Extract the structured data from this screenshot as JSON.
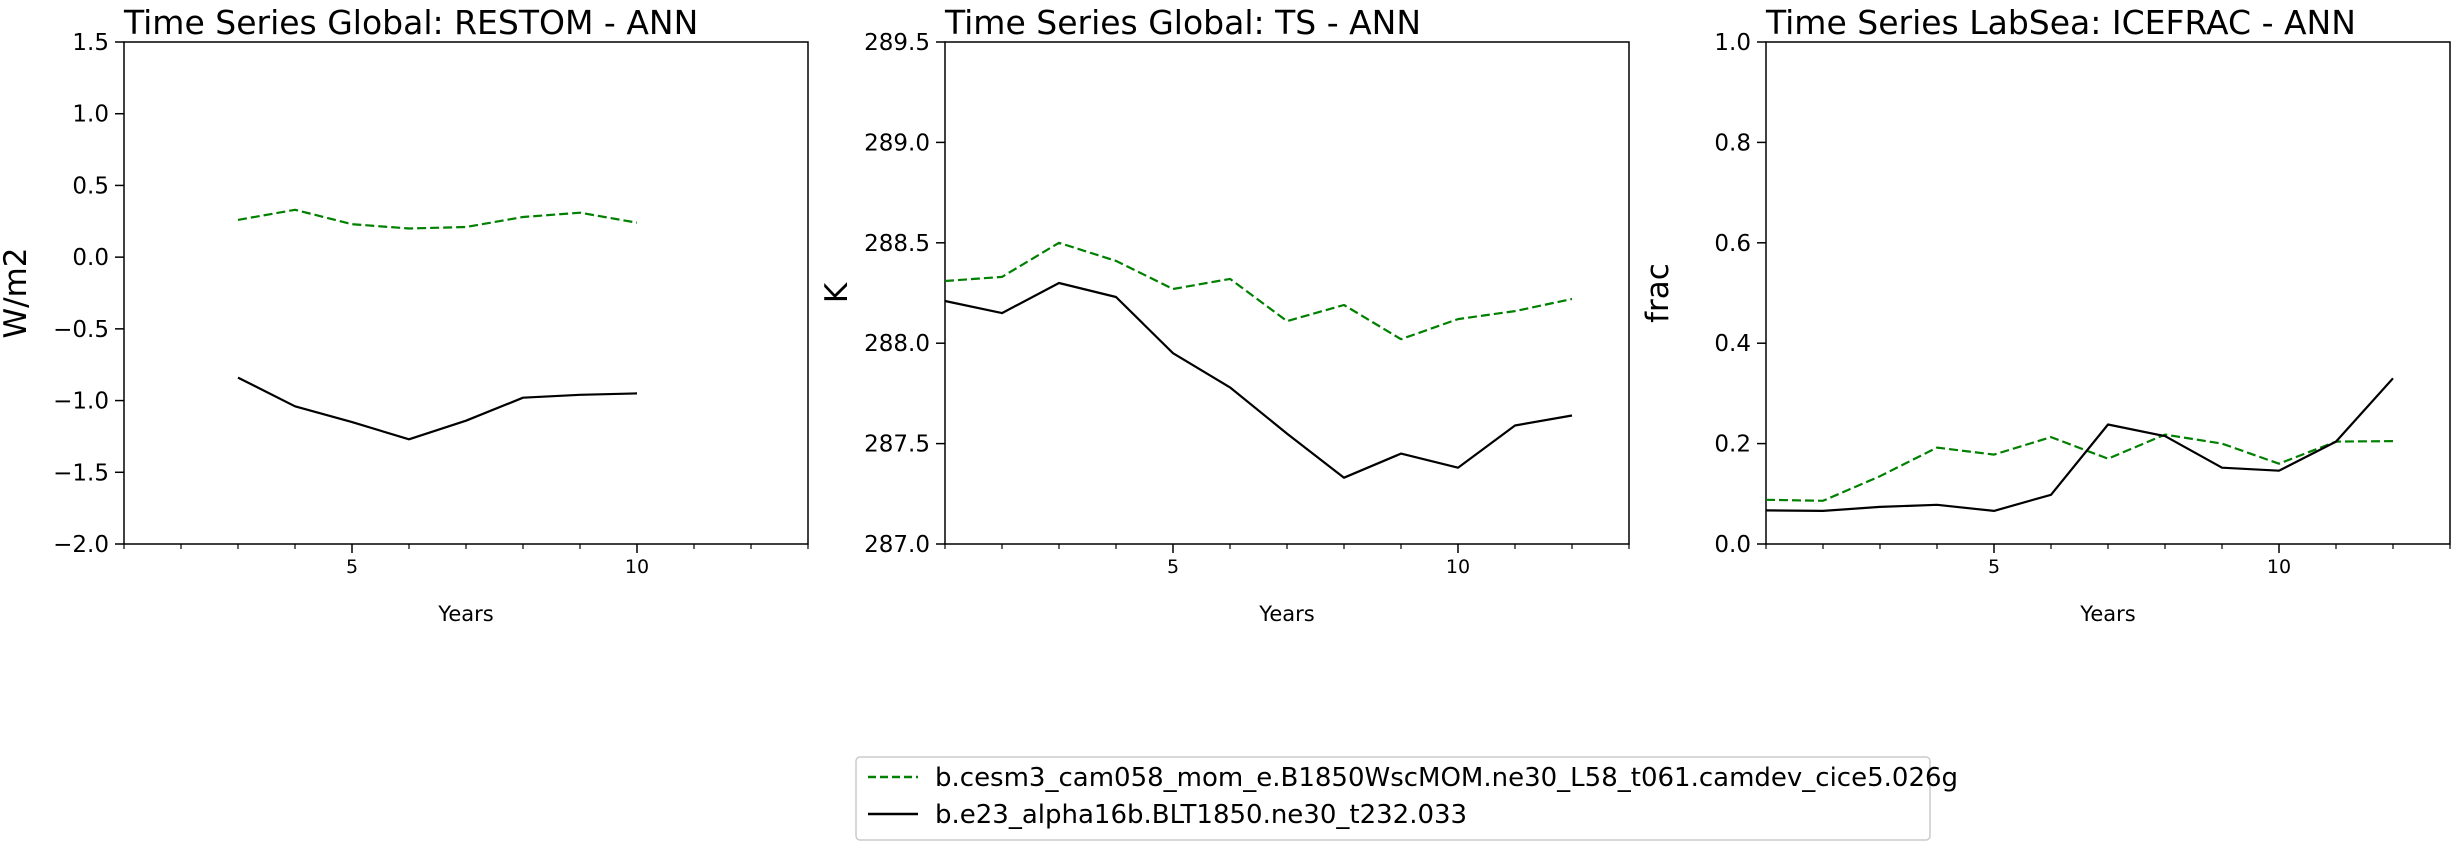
{
  "legend": {
    "placement": "bottom-center",
    "entries": [
      {
        "label": "b.cesm3_cam058_mom_e.B1850WscMOM.ne30_L58_t061.camdev_cice5.026g",
        "color": "#008000",
        "style": "dashed"
      },
      {
        "label": "b.e23_alpha16b.BLT1850.ne30_t232.033",
        "color": "#000000",
        "style": "solid"
      }
    ]
  },
  "chart_data": [
    {
      "type": "line",
      "title": "Time Series Global: RESTOM - ANN",
      "xlabel": "Years",
      "ylabel": "W/m2",
      "xlim": [
        1,
        13
      ],
      "ylim": [
        -2.0,
        1.5
      ],
      "xticks": [
        5,
        10
      ],
      "xtick_labels": [
        "5",
        "10"
      ],
      "yticks": [
        -2.0,
        -1.5,
        -1.0,
        -0.5,
        0.0,
        0.5,
        1.0,
        1.5
      ],
      "ytick_labels": [
        "−2.0",
        "−1.5",
        "−1.0",
        "−0.5",
        "0.0",
        "0.5",
        "1.0",
        "1.5"
      ],
      "grid": false,
      "series": [
        {
          "color": "#008000",
          "style": "dashed",
          "x": [
            3,
            4,
            5,
            6,
            7,
            8,
            9,
            10
          ],
          "y": [
            0.26,
            0.33,
            0.23,
            0.2,
            0.21,
            0.28,
            0.31,
            0.24
          ]
        },
        {
          "color": "#000000",
          "style": "solid",
          "x": [
            3,
            4,
            5,
            6,
            7,
            8,
            9,
            10
          ],
          "y": [
            -0.84,
            -1.04,
            -1.15,
            -1.27,
            -1.14,
            -0.98,
            -0.96,
            -0.95
          ]
        }
      ]
    },
    {
      "type": "line",
      "title": "Time Series Global: TS - ANN",
      "xlabel": "Years",
      "ylabel": "K",
      "xlim": [
        1,
        13
      ],
      "ylim": [
        287.0,
        289.5
      ],
      "xticks": [
        5,
        10
      ],
      "xtick_labels": [
        "5",
        "10"
      ],
      "yticks": [
        287.0,
        287.5,
        288.0,
        288.5,
        289.0,
        289.5
      ],
      "ytick_labels": [
        "287.0",
        "287.5",
        "288.0",
        "288.5",
        "289.0",
        "289.5"
      ],
      "grid": false,
      "series": [
        {
          "color": "#008000",
          "style": "dashed",
          "x": [
            1,
            2,
            3,
            4,
            5,
            6,
            7,
            8,
            9,
            10,
            11,
            12
          ],
          "y": [
            288.31,
            288.33,
            288.5,
            288.41,
            288.27,
            288.32,
            288.11,
            288.19,
            288.02,
            288.12,
            288.16,
            288.22
          ]
        },
        {
          "color": "#000000",
          "style": "solid",
          "x": [
            1,
            2,
            3,
            4,
            5,
            6,
            7,
            8,
            9,
            10,
            11,
            12
          ],
          "y": [
            288.21,
            288.15,
            288.3,
            288.23,
            287.95,
            287.78,
            287.55,
            287.33,
            287.45,
            287.38,
            287.59,
            287.64
          ]
        }
      ]
    },
    {
      "type": "line",
      "title": "Time Series LabSea: ICEFRAC - ANN",
      "xlabel": "Years",
      "ylabel": "frac",
      "xlim": [
        1,
        13
      ],
      "ylim": [
        0.0,
        1.0
      ],
      "xticks": [
        5,
        10
      ],
      "xtick_labels": [
        "5",
        "10"
      ],
      "yticks": [
        0.0,
        0.2,
        0.4,
        0.6,
        0.8,
        1.0
      ],
      "ytick_labels": [
        "0.0",
        "0.2",
        "0.4",
        "0.6",
        "0.8",
        "1.0"
      ],
      "grid": false,
      "series": [
        {
          "color": "#008000",
          "style": "dashed",
          "x": [
            1,
            2,
            3,
            4,
            5,
            6,
            7,
            8,
            9,
            10,
            11,
            12
          ],
          "y": [
            0.088,
            0.086,
            0.135,
            0.192,
            0.178,
            0.213,
            0.17,
            0.218,
            0.2,
            0.16,
            0.204,
            0.205
          ]
        },
        {
          "color": "#000000",
          "style": "solid",
          "x": [
            1,
            2,
            3,
            4,
            5,
            6,
            7,
            8,
            9,
            10,
            11,
            12
          ],
          "y": [
            0.067,
            0.066,
            0.074,
            0.078,
            0.066,
            0.098,
            0.238,
            0.215,
            0.152,
            0.146,
            0.204,
            0.33
          ]
        }
      ]
    }
  ]
}
